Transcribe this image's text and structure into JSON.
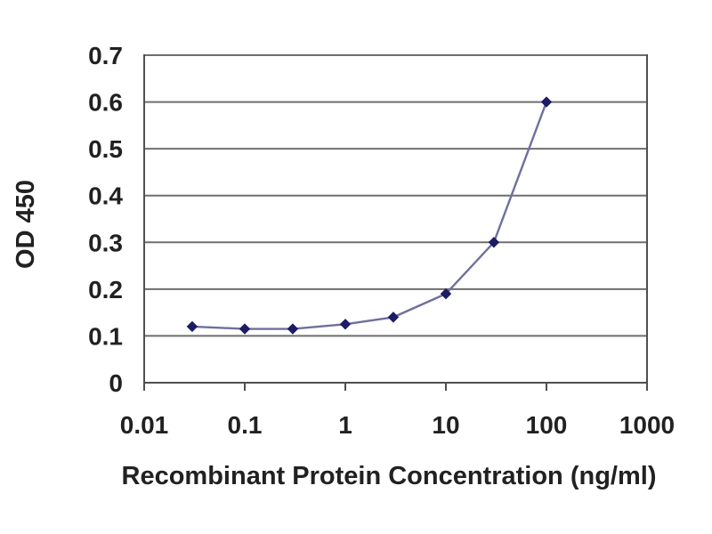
{
  "page": {
    "background_color": "#ffffff"
  },
  "chart_data": {
    "type": "line",
    "title": "",
    "xlabel": "Recombinant Protein Concentration (ng/ml)",
    "ylabel": "OD 450",
    "x_scale": "log",
    "xlim": [
      0.01,
      1000
    ],
    "ylim": [
      0,
      0.7
    ],
    "x_tick_values": [
      0.01,
      0.1,
      1,
      10,
      100,
      1000
    ],
    "x_tick_labels": [
      "0.01",
      "0.1",
      "1",
      "10",
      "100",
      "1000"
    ],
    "y_tick_values": [
      0,
      0.1,
      0.2,
      0.3,
      0.4,
      0.5,
      0.6,
      0.7
    ],
    "y_tick_labels": [
      "0",
      "0.1",
      "0.2",
      "0.3",
      "0.4",
      "0.5",
      "0.6",
      "0.7"
    ],
    "grid": "horizontal",
    "legend": "none",
    "series": [
      {
        "name": "OD 450",
        "marker": "diamond",
        "x": [
          0.03,
          0.1,
          0.3,
          1,
          3,
          10,
          30,
          100
        ],
        "y": [
          0.12,
          0.115,
          0.115,
          0.125,
          0.14,
          0.19,
          0.3,
          0.6
        ]
      }
    ]
  },
  "colors": {
    "grid_line": "#6e6e6e",
    "axis_line": "#4f4f4f",
    "tick_mark": "#4f4f4f",
    "series_line": "#6f6f9e",
    "marker_fill": "#1c1c66",
    "text": "#212121"
  }
}
